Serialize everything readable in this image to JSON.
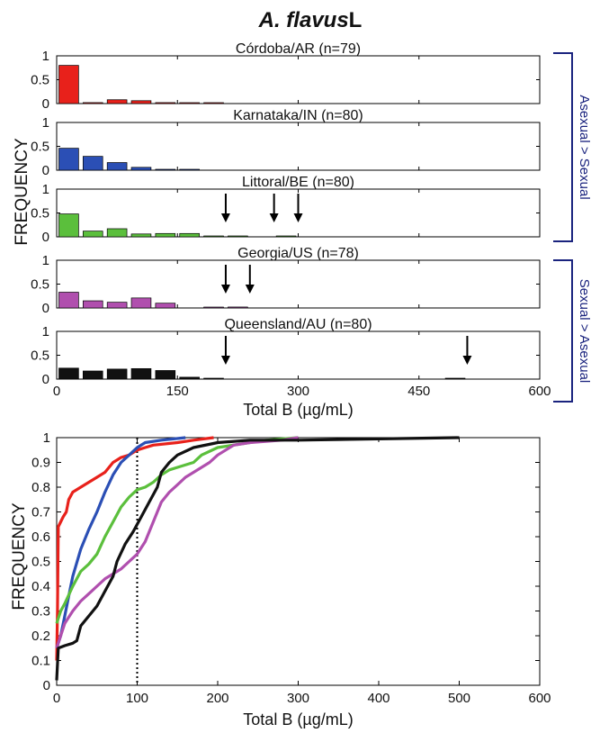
{
  "figure": {
    "title_species": "A. flavus",
    "title_suffix": "L",
    "bracket_labels": [
      {
        "text": "Asexual > Sexual",
        "color": "#1a237e"
      },
      {
        "text": "Sexual > Asexual",
        "color": "#1a237e"
      }
    ]
  },
  "chart_data": [
    {
      "type": "bar",
      "title": "",
      "xlabel": "Total B (µg/mL)",
      "ylabel": "FREQUENCY",
      "xlim": [
        0,
        600
      ],
      "ylim": [
        0,
        1
      ],
      "xticks": [
        "0",
        "150",
        "300",
        "450",
        "600"
      ],
      "yticks": [
        "0",
        "0.5",
        "1"
      ],
      "bin_width": 30,
      "bin_centers": [
        15,
        45,
        75,
        105,
        135,
        165,
        195,
        225,
        255,
        285,
        315,
        345,
        375,
        405,
        435,
        465,
        495,
        525,
        555,
        585
      ],
      "panels": [
        {
          "name": "Córdoba/AR (n=79)",
          "color": "#e8211b",
          "values": [
            0.8,
            0.02,
            0.08,
            0.06,
            0.02,
            0.005,
            0.01,
            0,
            0,
            0,
            0,
            0,
            0,
            0,
            0,
            0,
            0,
            0,
            0,
            0
          ],
          "arrows": []
        },
        {
          "name": "Karnataka/IN (n=80)",
          "color": "#2b4fb5",
          "values": [
            0.46,
            0.29,
            0.16,
            0.06,
            0.01,
            0.01,
            0,
            0,
            0,
            0,
            0,
            0,
            0,
            0,
            0,
            0,
            0,
            0,
            0,
            0
          ],
          "arrows": []
        },
        {
          "name": "Littoral/BE (n=80)",
          "color": "#5bbf3c",
          "values": [
            0.48,
            0.12,
            0.17,
            0.06,
            0.07,
            0.07,
            0.01,
            0.01,
            0,
            0.01,
            0,
            0,
            0,
            0,
            0,
            0,
            0,
            0,
            0,
            0
          ],
          "arrows": [
            210,
            270,
            300
          ]
        },
        {
          "name": "Georgia/US (n=78)",
          "color": "#b04fae",
          "values": [
            0.33,
            0.15,
            0.12,
            0.21,
            0.1,
            0,
            0.01,
            0.02,
            0,
            0,
            0,
            0,
            0,
            0,
            0,
            0,
            0,
            0,
            0,
            0
          ],
          "arrows": [
            210,
            240
          ]
        },
        {
          "name": "Queensland/AU (n=80)",
          "color": "#111111",
          "values": [
            0.23,
            0.17,
            0.21,
            0.22,
            0.18,
            0.04,
            0.01,
            0,
            0,
            0,
            0,
            0,
            0,
            0,
            0,
            0,
            0.01,
            0,
            0,
            0
          ],
          "arrows": [
            210,
            510
          ]
        }
      ]
    },
    {
      "type": "line",
      "title": "",
      "xlabel": "Total B (µg/mL)",
      "ylabel": "FREQUENCY",
      "xlim": [
        0,
        600
      ],
      "ylim": [
        0,
        1
      ],
      "xticks": [
        "0",
        "100",
        "200",
        "300",
        "400",
        "500",
        "600"
      ],
      "yticks": [
        "0",
        "0.1",
        "0.2",
        "0.3",
        "0.4",
        "0.5",
        "0.6",
        "0.7",
        "0.8",
        "0.9",
        "1"
      ],
      "reference_line_x": 100,
      "series": [
        {
          "color": "#e8211b",
          "points": [
            [
              0,
              0.1
            ],
            [
              1,
              0.3
            ],
            [
              2,
              0.64
            ],
            [
              5,
              0.66
            ],
            [
              8,
              0.68
            ],
            [
              12,
              0.7
            ],
            [
              15,
              0.75
            ],
            [
              20,
              0.78
            ],
            [
              30,
              0.8
            ],
            [
              40,
              0.82
            ],
            [
              50,
              0.84
            ],
            [
              60,
              0.86
            ],
            [
              70,
              0.9
            ],
            [
              80,
              0.92
            ],
            [
              90,
              0.93
            ],
            [
              100,
              0.95
            ],
            [
              110,
              0.96
            ],
            [
              120,
              0.97
            ],
            [
              150,
              0.98
            ],
            [
              170,
              0.99
            ],
            [
              195,
              1.0
            ]
          ]
        },
        {
          "color": "#2b4fb5",
          "points": [
            [
              0,
              0.15
            ],
            [
              5,
              0.2
            ],
            [
              10,
              0.28
            ],
            [
              15,
              0.36
            ],
            [
              20,
              0.44
            ],
            [
              30,
              0.55
            ],
            [
              40,
              0.63
            ],
            [
              50,
              0.7
            ],
            [
              60,
              0.78
            ],
            [
              70,
              0.85
            ],
            [
              80,
              0.9
            ],
            [
              90,
              0.93
            ],
            [
              100,
              0.96
            ],
            [
              110,
              0.98
            ],
            [
              130,
              0.99
            ],
            [
              160,
              1.0
            ]
          ]
        },
        {
          "color": "#5bbf3c",
          "points": [
            [
              0,
              0.25
            ],
            [
              5,
              0.3
            ],
            [
              10,
              0.33
            ],
            [
              20,
              0.4
            ],
            [
              30,
              0.46
            ],
            [
              40,
              0.49
            ],
            [
              50,
              0.53
            ],
            [
              60,
              0.6
            ],
            [
              70,
              0.66
            ],
            [
              80,
              0.72
            ],
            [
              90,
              0.76
            ],
            [
              100,
              0.79
            ],
            [
              110,
              0.8
            ],
            [
              120,
              0.82
            ],
            [
              130,
              0.85
            ],
            [
              140,
              0.87
            ],
            [
              150,
              0.88
            ],
            [
              170,
              0.9
            ],
            [
              180,
              0.93
            ],
            [
              200,
              0.96
            ],
            [
              240,
              0.98
            ],
            [
              260,
              0.99
            ],
            [
              300,
              1.0
            ]
          ]
        },
        {
          "color": "#b04fae",
          "points": [
            [
              0,
              0.15
            ],
            [
              5,
              0.2
            ],
            [
              10,
              0.25
            ],
            [
              20,
              0.3
            ],
            [
              30,
              0.34
            ],
            [
              40,
              0.37
            ],
            [
              50,
              0.4
            ],
            [
              60,
              0.43
            ],
            [
              70,
              0.45
            ],
            [
              80,
              0.47
            ],
            [
              90,
              0.5
            ],
            [
              100,
              0.53
            ],
            [
              110,
              0.58
            ],
            [
              120,
              0.66
            ],
            [
              130,
              0.74
            ],
            [
              140,
              0.78
            ],
            [
              150,
              0.81
            ],
            [
              160,
              0.84
            ],
            [
              170,
              0.86
            ],
            [
              180,
              0.88
            ],
            [
              190,
              0.9
            ],
            [
              200,
              0.93
            ],
            [
              210,
              0.95
            ],
            [
              220,
              0.97
            ],
            [
              240,
              0.98
            ],
            [
              280,
              0.99
            ],
            [
              300,
              1.0
            ]
          ]
        },
        {
          "color": "#111111",
          "points": [
            [
              0,
              0.02
            ],
            [
              2,
              0.15
            ],
            [
              10,
              0.16
            ],
            [
              20,
              0.17
            ],
            [
              25,
              0.18
            ],
            [
              30,
              0.24
            ],
            [
              40,
              0.28
            ],
            [
              50,
              0.32
            ],
            [
              60,
              0.38
            ],
            [
              70,
              0.44
            ],
            [
              75,
              0.5
            ],
            [
              85,
              0.57
            ],
            [
              95,
              0.62
            ],
            [
              105,
              0.68
            ],
            [
              115,
              0.74
            ],
            [
              125,
              0.8
            ],
            [
              130,
              0.86
            ],
            [
              140,
              0.9
            ],
            [
              150,
              0.93
            ],
            [
              170,
              0.96
            ],
            [
              200,
              0.98
            ],
            [
              240,
              0.99
            ],
            [
              300,
              0.99
            ],
            [
              500,
              1.0
            ]
          ]
        }
      ]
    }
  ]
}
